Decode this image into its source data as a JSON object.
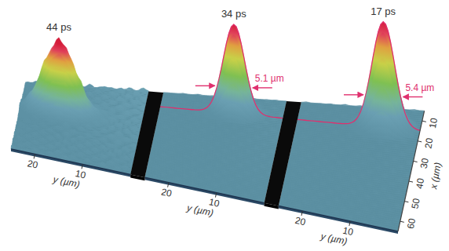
{
  "chart_data": {
    "type": "surface",
    "x_label": "x (µm)",
    "y_label": "y (µm)",
    "xlim": [
      5,
      65
    ],
    "xticks": [
      10,
      20,
      30,
      40,
      50,
      60
    ],
    "ylim": [
      0,
      25
    ],
    "yticks": [
      10,
      20
    ],
    "peaks": [
      {
        "time": {
          "value": 44,
          "label": "44 ps"
        },
        "y": 17,
        "x": 28,
        "width": 8
      },
      {
        "time": {
          "value": 34,
          "label": "34 ps"
        },
        "y": 10,
        "x": 15,
        "width": {
          "value": 5.1,
          "label": "5.1 µm"
        }
      },
      {
        "time": {
          "value": 17,
          "label": "17 ps"
        },
        "y": 7.5,
        "x": 15,
        "width": {
          "value": 5.4,
          "label": "5.4 µm"
        }
      }
    ]
  }
}
